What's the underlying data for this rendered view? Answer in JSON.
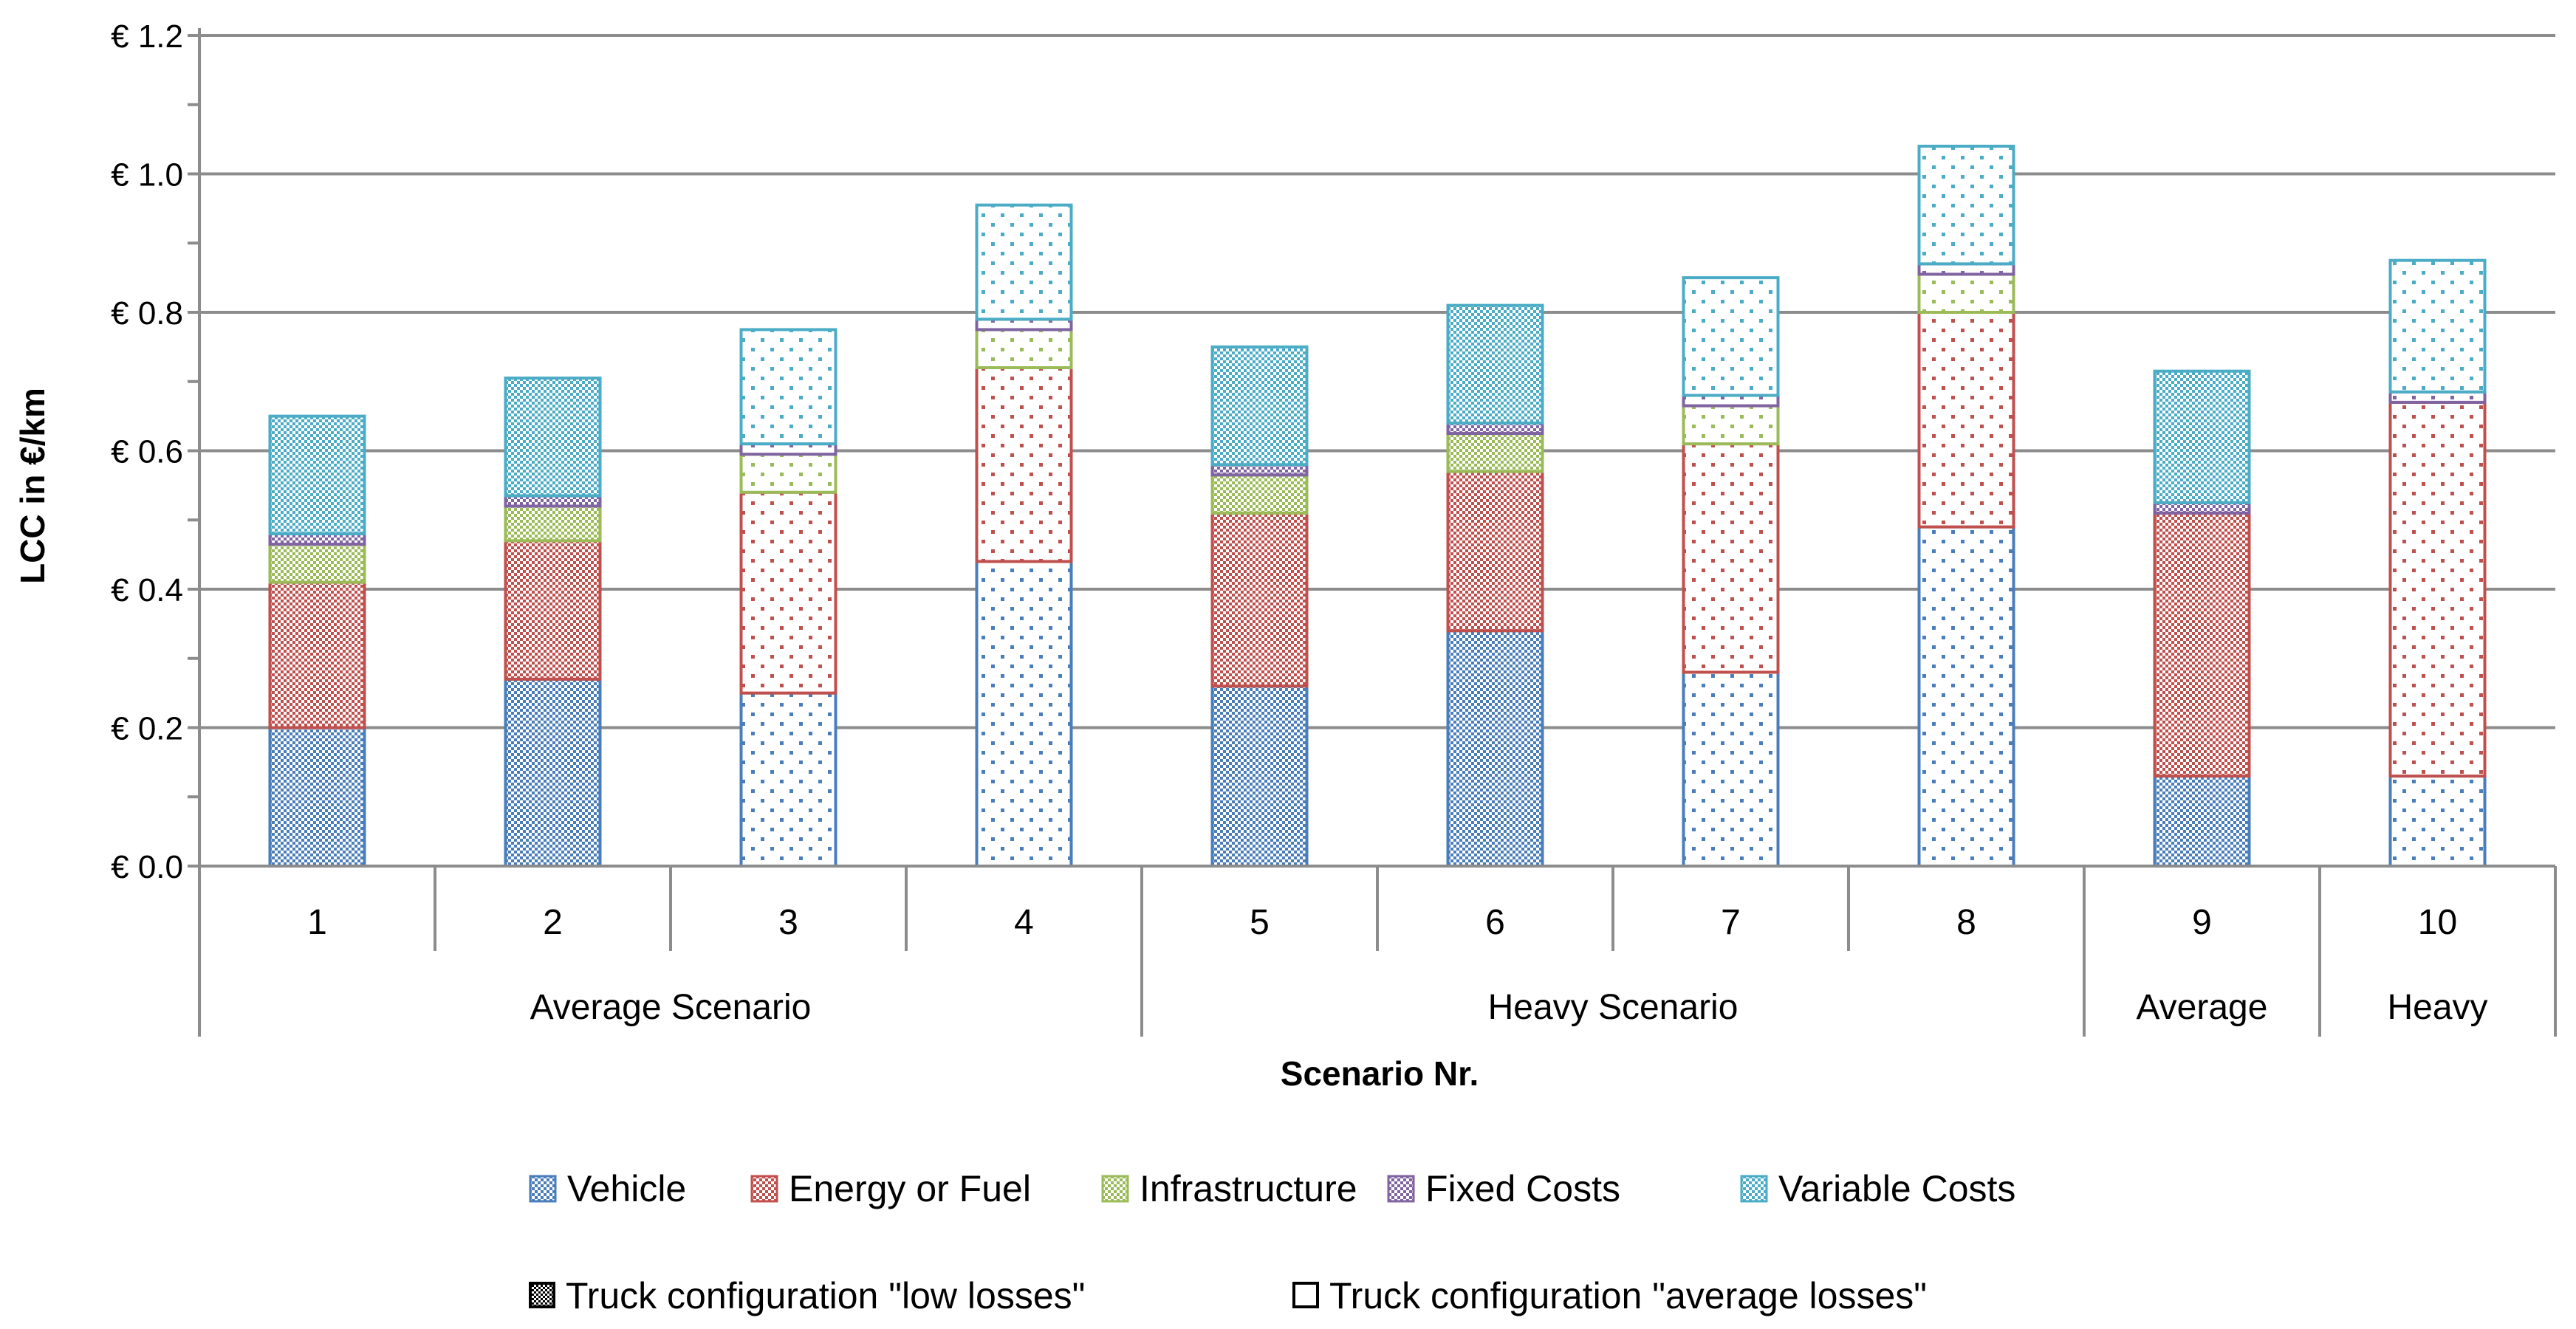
{
  "chart_data": {
    "type": "bar",
    "stacked": true,
    "title": "",
    "xlabel": "Scenario Nr.",
    "ylabel": "LCC in €/km",
    "ylim": [
      0,
      1.2
    ],
    "yticks": [
      0.0,
      0.2,
      0.4,
      0.6,
      0.8,
      1.0,
      1.2
    ],
    "ytick_labels": [
      "€ 0.0",
      "€ 0.2",
      "€ 0.4",
      "€ 0.6",
      "€ 0.8",
      "€ 1.0",
      "€ 1.2"
    ],
    "grid": true,
    "categories": [
      "1",
      "2",
      "3",
      "4",
      "5",
      "6",
      "7",
      "8",
      "9",
      "10"
    ],
    "groups": [
      {
        "label": "Average Scenario",
        "start": 0,
        "end": 3
      },
      {
        "label": "Heavy Scenario",
        "start": 4,
        "end": 7
      },
      {
        "label": "Average",
        "start": 8,
        "end": 8
      },
      {
        "label": "Heavy",
        "start": 9,
        "end": 9
      }
    ],
    "configuration": [
      "low",
      "low",
      "average",
      "average",
      "low",
      "low",
      "average",
      "average",
      "low",
      "average"
    ],
    "series": [
      {
        "name": "Vehicle",
        "color": "#4A7EBB",
        "values": [
          0.2,
          0.27,
          0.25,
          0.44,
          0.26,
          0.34,
          0.28,
          0.49,
          0.13,
          0.13
        ]
      },
      {
        "name": "Energy or Fuel",
        "color": "#C0504D",
        "values": [
          0.21,
          0.2,
          0.29,
          0.28,
          0.25,
          0.23,
          0.33,
          0.31,
          0.38,
          0.54
        ]
      },
      {
        "name": "Infrastructure",
        "color": "#9BBB59",
        "values": [
          0.055,
          0.05,
          0.055,
          0.055,
          0.055,
          0.055,
          0.055,
          0.055,
          0.0,
          0.0
        ]
      },
      {
        "name": "Fixed Costs",
        "color": "#8064A2",
        "values": [
          0.015,
          0.015,
          0.015,
          0.015,
          0.015,
          0.015,
          0.015,
          0.015,
          0.015,
          0.015
        ]
      },
      {
        "name": "Variable Costs",
        "color": "#4BACC6",
        "values": [
          0.17,
          0.17,
          0.165,
          0.165,
          0.17,
          0.17,
          0.17,
          0.17,
          0.19,
          0.19
        ]
      }
    ],
    "legend": {
      "placement": "bottom",
      "config_entries": [
        {
          "name": "Truck configuration \"low losses\"",
          "pattern": "low"
        },
        {
          "name": "Truck configuration \"average losses\"",
          "pattern": "average"
        }
      ]
    }
  }
}
